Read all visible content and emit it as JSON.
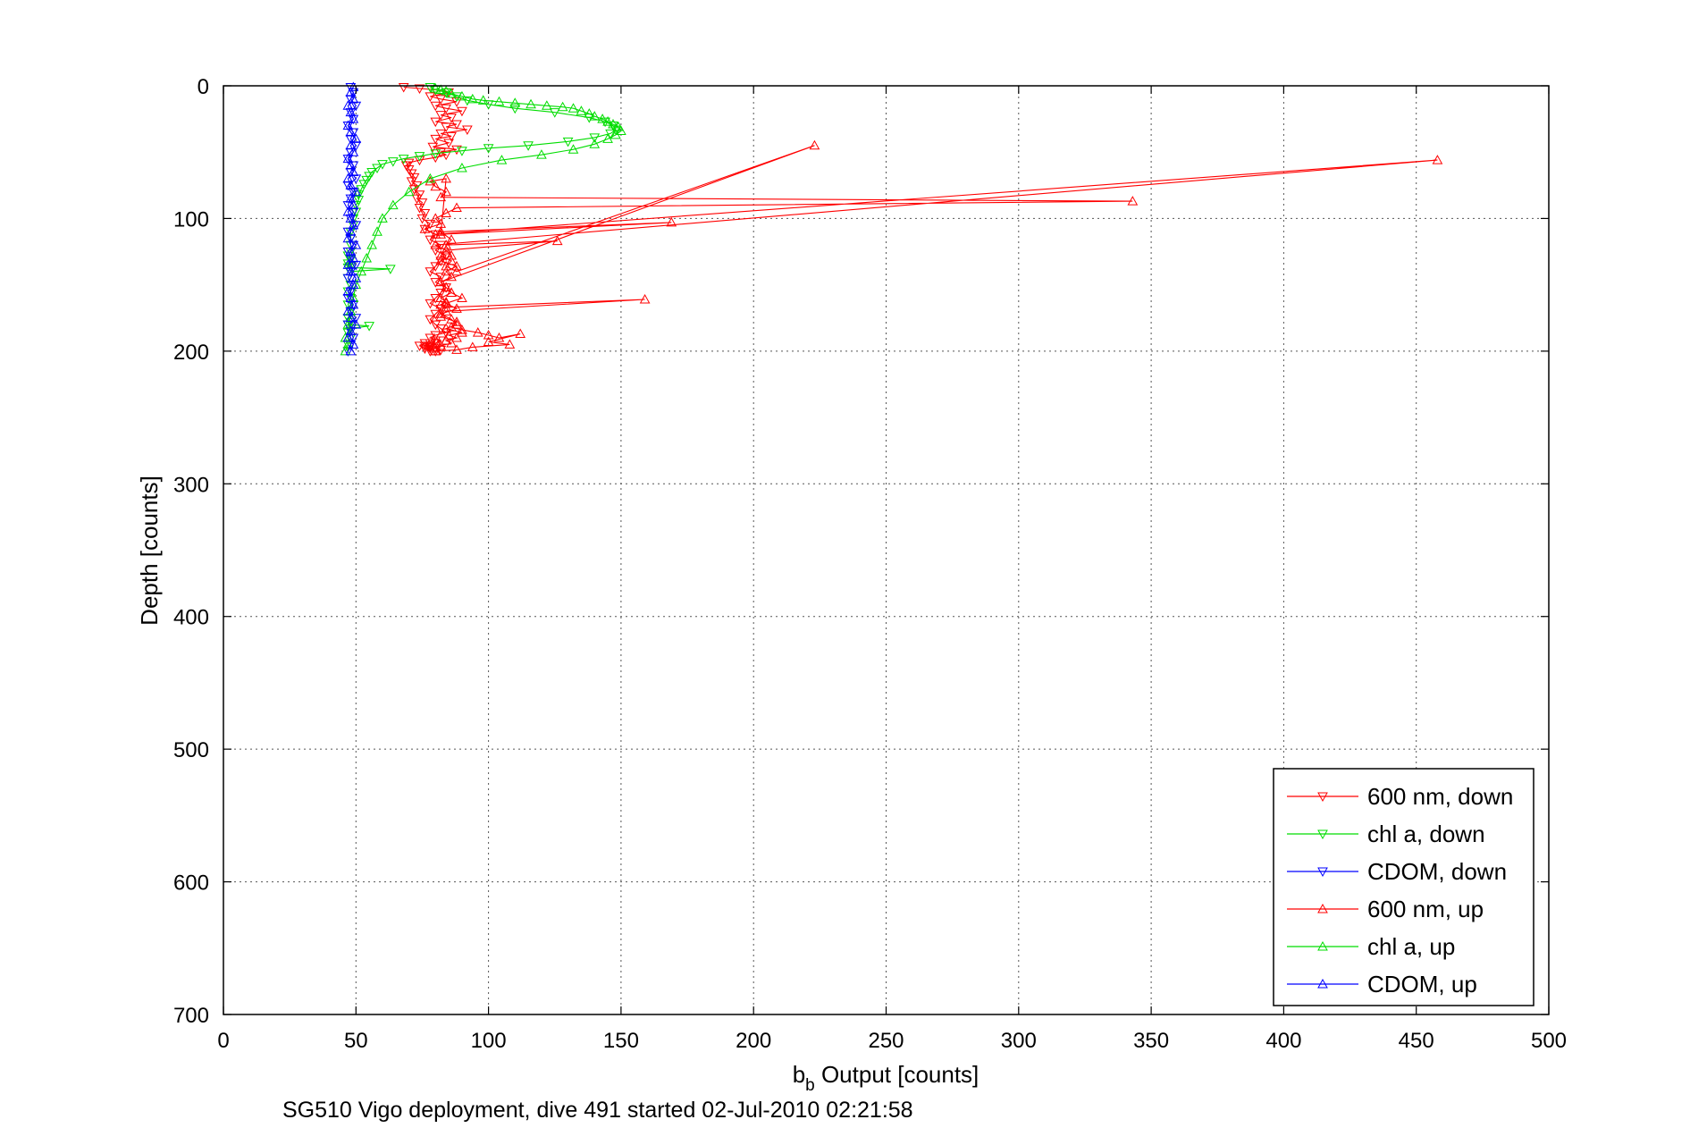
{
  "chart_data": {
    "type": "line",
    "xlabel_main": "b",
    "xlabel_sub": "b",
    "xlabel_rest": " Output [counts]",
    "ylabel": "Depth [counts]",
    "caption": "SG510 Vigo deployment, dive 491 started 02-Jul-2010 02:21:58",
    "xlim": [
      0,
      500
    ],
    "ylim": [
      0,
      700
    ],
    "y_reversed": true,
    "grid": true,
    "legend_position": "bottom-right",
    "xticks": [
      0,
      50,
      100,
      150,
      200,
      250,
      300,
      350,
      400,
      450,
      500
    ],
    "yticks": [
      0,
      100,
      200,
      300,
      400,
      500,
      600,
      700
    ],
    "series": [
      {
        "name": "600 nm, down",
        "color": "#ff0000",
        "marker": "triangle-down",
        "x": [
          68,
          74,
          80,
          85,
          78,
          82,
          88,
          80,
          84,
          90,
          82,
          86,
          80,
          88,
          84,
          92,
          82,
          86,
          80,
          85,
          79,
          88,
          82,
          84,
          80,
          74,
          70,
          69,
          70,
          71,
          72,
          71,
          73,
          72,
          74,
          73,
          75,
          74,
          76,
          75,
          78,
          76,
          80,
          78,
          82,
          80,
          84,
          82,
          80,
          78,
          82,
          80,
          84,
          82,
          80,
          78,
          82,
          80,
          78,
          80,
          82,
          84,
          80,
          78,
          82,
          80,
          78,
          80,
          82,
          80,
          78,
          76,
          78,
          80,
          78,
          76,
          78,
          76,
          74,
          76,
          78
        ],
        "y": [
          1,
          2,
          3,
          5,
          8,
          10,
          12,
          15,
          17,
          19,
          22,
          24,
          27,
          29,
          31,
          33,
          36,
          38,
          40,
          43,
          46,
          48,
          50,
          52,
          54,
          56,
          58,
          60,
          63,
          66,
          69,
          72,
          75,
          78,
          82,
          85,
          88,
          92,
          96,
          100,
          104,
          108,
          112,
          116,
          120,
          124,
          128,
          132,
          136,
          140,
          144,
          148,
          152,
          156,
          160,
          164,
          168,
          172,
          176,
          180,
          183,
          186,
          188,
          190,
          192,
          194,
          196,
          198,
          199,
          200,
          198,
          196,
          194,
          192,
          196,
          198,
          200,
          198,
          196,
          194,
          197
        ]
      },
      {
        "name": "chl a, down",
        "color": "#00dd00",
        "marker": "triangle-down",
        "x": [
          78,
          80,
          84,
          88,
          92,
          100,
          110,
          125,
          138,
          144,
          147,
          148,
          146,
          140,
          130,
          115,
          100,
          90,
          80,
          74,
          68,
          64,
          60,
          58,
          56,
          55,
          54,
          53,
          52,
          51,
          51,
          50,
          50,
          49,
          49,
          48,
          48,
          48,
          48,
          47,
          48,
          47,
          48,
          47,
          63,
          48,
          47,
          48,
          47,
          48,
          47,
          48,
          47,
          48,
          47,
          55,
          48,
          47,
          48,
          47
        ],
        "y": [
          1,
          3,
          5,
          8,
          11,
          14,
          17,
          20,
          24,
          27,
          30,
          33,
          36,
          39,
          42,
          45,
          47,
          49,
          51,
          53,
          55,
          57,
          59,
          62,
          65,
          68,
          71,
          74,
          78,
          82,
          86,
          90,
          95,
          100,
          105,
          110,
          115,
          120,
          125,
          128,
          131,
          134,
          136,
          137,
          138,
          140,
          145,
          150,
          155,
          160,
          165,
          170,
          175,
          178,
          180,
          181,
          183,
          186,
          190,
          195
        ]
      },
      {
        "name": "CDOM, down",
        "color": "#0000ff",
        "marker": "triangle-down",
        "x": [
          48,
          49,
          48,
          50,
          48,
          49,
          47,
          49,
          48,
          50,
          48,
          47,
          49,
          48,
          50,
          47,
          49,
          48,
          47,
          49,
          48,
          50,
          47,
          48,
          49,
          47,
          48,
          50,
          48,
          47,
          49,
          48,
          47,
          49,
          48,
          50,
          47,
          48,
          49,
          48,
          47
        ],
        "y": [
          1,
          5,
          10,
          15,
          20,
          25,
          30,
          35,
          40,
          45,
          50,
          55,
          60,
          65,
          70,
          75,
          80,
          85,
          90,
          95,
          100,
          105,
          110,
          115,
          120,
          125,
          130,
          135,
          140,
          145,
          150,
          155,
          160,
          165,
          170,
          175,
          180,
          185,
          190,
          195,
          200
        ]
      },
      {
        "name": "600 nm, up",
        "color": "#ff0000",
        "marker": "triangle-up",
        "x": [
          80,
          82,
          86,
          84,
          88,
          85,
          90,
          84,
          88,
          86,
          82,
          88,
          84,
          90,
          86,
          84,
          82,
          223,
          88,
          84,
          86,
          82,
          84,
          80,
          458,
          80,
          76,
          82,
          80,
          84,
          88,
          343,
          82,
          84,
          80,
          78,
          84,
          82,
          169,
          82,
          86,
          84,
          126,
          84,
          86,
          82,
          88,
          84,
          86,
          82,
          84,
          86,
          82,
          84,
          82,
          84,
          159,
          84,
          82,
          88,
          86,
          90,
          96,
          100,
          104,
          112,
          100,
          108,
          94,
          88,
          80
        ],
        "y": [
          200,
          196,
          194,
          192,
          190,
          188,
          186,
          183,
          180,
          176,
          172,
          168,
          164,
          160,
          156,
          152,
          148,
          45,
          140,
          136,
          132,
          128,
          124,
          120,
          56,
          112,
          108,
          104,
          100,
          96,
          92,
          87,
          84,
          80,
          76,
          72,
          70,
          112,
          103,
          110,
          116,
          120,
          117,
          124,
          128,
          132,
          136,
          140,
          144,
          148,
          152,
          156,
          160,
          163,
          165,
          167,
          161,
          170,
          174,
          178,
          182,
          184,
          186,
          188,
          190,
          187,
          193,
          195,
          197,
          199,
          200
        ]
      },
      {
        "name": "chl a, up",
        "color": "#00dd00",
        "marker": "triangle-up",
        "x": [
          46,
          47,
          46,
          48,
          47,
          48,
          49,
          50,
          52,
          54,
          56,
          58,
          60,
          64,
          70,
          78,
          90,
          105,
          120,
          132,
          140,
          145,
          148,
          150,
          149,
          147,
          145,
          143,
          140,
          138,
          135,
          132,
          128,
          122,
          116,
          110,
          104,
          98,
          94,
          90,
          86,
          84,
          82,
          80
        ],
        "y": [
          200,
          195,
          190,
          185,
          180,
          170,
          160,
          150,
          140,
          130,
          120,
          110,
          100,
          90,
          80,
          70,
          62,
          56,
          52,
          48,
          44,
          40,
          37,
          34,
          31,
          29,
          27,
          25,
          23,
          21,
          19,
          17,
          16,
          15,
          14,
          13,
          12,
          11,
          10,
          8,
          6,
          4,
          3,
          2
        ]
      },
      {
        "name": "CDOM, up",
        "color": "#0000ff",
        "marker": "triangle-up",
        "x": [
          48,
          49,
          47,
          48,
          50,
          48,
          47,
          49,
          48,
          47,
          49,
          50,
          48,
          47,
          49,
          48,
          50,
          47,
          48,
          49,
          48,
          47,
          49,
          48,
          50,
          48,
          47,
          49,
          48,
          47,
          49,
          48,
          50,
          48,
          47,
          49,
          48,
          47,
          49,
          48,
          49
        ],
        "y": [
          200,
          195,
          190,
          185,
          180,
          175,
          170,
          165,
          160,
          155,
          150,
          145,
          140,
          135,
          130,
          125,
          120,
          115,
          110,
          105,
          100,
          95,
          90,
          85,
          80,
          75,
          70,
          65,
          60,
          55,
          50,
          45,
          40,
          35,
          30,
          25,
          20,
          15,
          10,
          5,
          1
        ]
      }
    ]
  }
}
